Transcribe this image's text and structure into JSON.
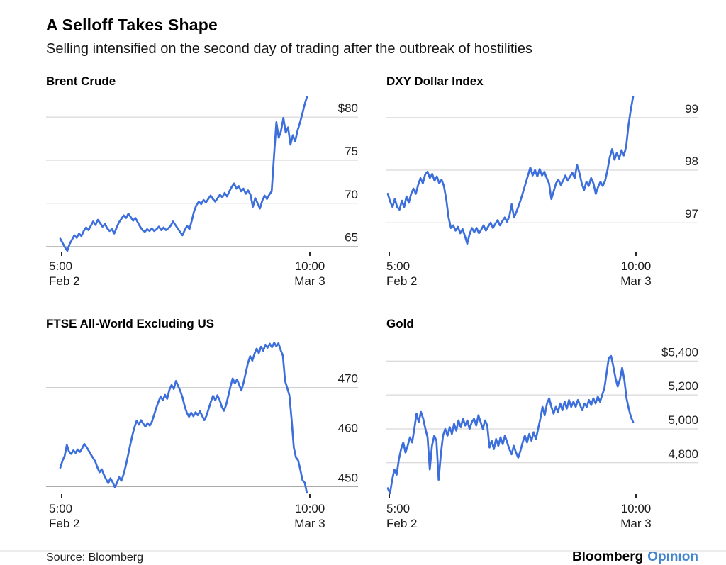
{
  "header": {
    "title": "A Selloff Takes Shape",
    "subtitle": "Selling intensified on the second day of trading after the outbreak of hostilities"
  },
  "footer": {
    "source": "Source: Bloomberg",
    "brand": "Bloomberg",
    "brand_suffix": "Opinion"
  },
  "colors": {
    "line": "#3C6EDC",
    "grid": "#cfcfcf",
    "grid_dark": "#a9a9a9",
    "opinion_blue": "#4285CE"
  },
  "chart_data": [
    {
      "id": "brent",
      "type": "line",
      "title": "Brent Crude",
      "ylim": [
        64.4,
        82.8
      ],
      "grid": true,
      "legend": "none",
      "line_span": [
        0.0455,
        0.836
      ],
      "gridlines": [
        {
          "value": 80,
          "label": "$80"
        },
        {
          "value": 75,
          "label": "75"
        },
        {
          "value": 70,
          "label": "70"
        },
        {
          "value": 65,
          "label": "65",
          "baseline": true
        }
      ],
      "x_start_time": "5:00",
      "x_start_date": "Feb 2",
      "x_end_time": "10:00",
      "x_end_date": "Mar 3",
      "values": [
        65.9,
        65.4,
        64.9,
        64.5,
        65.3,
        65.8,
        66.3,
        66.0,
        66.5,
        66.2,
        66.8,
        67.2,
        66.9,
        67.4,
        67.9,
        67.5,
        68.1,
        67.7,
        67.3,
        67.6,
        67.1,
        66.8,
        67.0,
        66.5,
        67.2,
        67.8,
        68.2,
        68.6,
        68.3,
        68.8,
        68.4,
        68.0,
        68.3,
        67.8,
        67.3,
        66.9,
        66.7,
        67.0,
        66.8,
        67.1,
        66.8,
        67.0,
        67.3,
        66.9,
        67.2,
        66.9,
        67.1,
        67.4,
        67.9,
        67.5,
        67.1,
        66.7,
        66.3,
        66.9,
        67.4,
        67.0,
        68.0,
        69.1,
        69.8,
        70.2,
        69.9,
        70.4,
        70.1,
        70.5,
        70.9,
        70.5,
        70.2,
        70.6,
        71.0,
        70.7,
        71.2,
        70.8,
        71.4,
        71.9,
        72.3,
        71.7,
        72.0,
        71.4,
        71.7,
        71.1,
        71.5,
        71.0,
        69.6,
        70.6,
        70.0,
        69.4,
        70.3,
        70.9,
        70.5,
        71.0,
        71.4,
        75.5,
        79.4,
        77.6,
        78.4,
        79.9,
        78.2,
        78.8,
        76.8,
        77.9,
        77.2,
        78.4,
        79.3,
        80.3,
        81.4,
        82.3
      ]
    },
    {
      "id": "dxy",
      "type": "line",
      "title": "DXY Dollar Index",
      "ylim": [
        96.45,
        99.47
      ],
      "grid": true,
      "legend": "none",
      "line_span": [
        0.0045,
        0.791
      ],
      "gridlines": [
        {
          "value": 99,
          "label": "99"
        },
        {
          "value": 98,
          "label": "98"
        },
        {
          "value": 97,
          "label": "97"
        }
      ],
      "x_start_time": "5:00",
      "x_start_date": "Feb 2",
      "x_end_time": "10:00",
      "x_end_date": "Mar 3",
      "values": [
        97.55,
        97.4,
        97.3,
        97.45,
        97.3,
        97.25,
        97.42,
        97.3,
        97.5,
        97.38,
        97.55,
        97.65,
        97.55,
        97.72,
        97.85,
        97.75,
        97.92,
        97.97,
        97.85,
        97.93,
        97.8,
        97.88,
        97.75,
        97.82,
        97.7,
        97.45,
        97.1,
        96.9,
        96.95,
        96.85,
        96.92,
        96.8,
        96.88,
        96.75,
        96.6,
        96.78,
        96.9,
        96.82,
        96.9,
        96.8,
        96.87,
        96.95,
        96.85,
        96.93,
        97.0,
        96.9,
        96.98,
        97.05,
        96.95,
        97.03,
        97.1,
        97.02,
        97.12,
        97.35,
        97.1,
        97.2,
        97.32,
        97.45,
        97.6,
        97.75,
        97.9,
        98.05,
        97.9,
        98.0,
        97.88,
        98.02,
        97.9,
        97.97,
        97.85,
        97.75,
        97.45,
        97.6,
        97.75,
        97.82,
        97.72,
        97.8,
        97.9,
        97.8,
        97.88,
        97.95,
        97.85,
        98.1,
        97.95,
        97.75,
        97.62,
        97.78,
        97.7,
        97.85,
        97.75,
        97.55,
        97.68,
        97.78,
        97.7,
        97.8,
        98.0,
        98.25,
        98.4,
        98.2,
        98.33,
        98.22,
        98.38,
        98.28,
        98.45,
        98.85,
        99.15,
        99.4
      ]
    },
    {
      "id": "ftse",
      "type": "line",
      "title": "FTSE All-World Excluding US",
      "ylim": [
        448.5,
        480.5
      ],
      "grid": true,
      "legend": "none",
      "line_span": [
        0.0455,
        0.836
      ],
      "gridlines": [
        {
          "value": 470,
          "label": "470"
        },
        {
          "value": 460,
          "label": "460"
        },
        {
          "value": 450,
          "label": "450",
          "baseline": true
        }
      ],
      "x_start_time": "5:00",
      "x_start_date": "Feb 2",
      "x_end_time": "10:00",
      "x_end_date": "Mar 3",
      "values": [
        453.8,
        455.2,
        456.2,
        458.4,
        457.1,
        456.6,
        457.3,
        456.8,
        457.5,
        457.0,
        457.7,
        458.6,
        458.0,
        457.3,
        456.5,
        455.8,
        455.1,
        453.9,
        452.9,
        453.5,
        452.4,
        451.5,
        450.7,
        451.7,
        450.9,
        449.9,
        450.8,
        451.9,
        451.2,
        452.5,
        454.2,
        456.2,
        458.3,
        460.3,
        462.0,
        463.3,
        462.5,
        463.4,
        462.7,
        462.1,
        462.8,
        462.3,
        463.1,
        464.5,
        465.9,
        467.1,
        468.2,
        467.4,
        468.5,
        467.7,
        469.5,
        470.5,
        469.7,
        471.3,
        470.3,
        469.3,
        468.0,
        466.2,
        464.9,
        464.1,
        464.9,
        464.2,
        465.0,
        464.4,
        465.2,
        464.3,
        463.4,
        464.3,
        465.7,
        467.1,
        468.3,
        467.4,
        468.4,
        467.5,
        466.1,
        465.3,
        466.5,
        468.3,
        470.2,
        471.8,
        470.8,
        471.6,
        470.5,
        469.4,
        471.0,
        473.0,
        474.9,
        476.3,
        475.4,
        476.8,
        477.8,
        476.9,
        478.2,
        477.4,
        478.6,
        478.0,
        478.8,
        478.1,
        479.0,
        478.3,
        478.9,
        477.5,
        476.4,
        471.3,
        469.9,
        468.4,
        463.5,
        457.9,
        455.9,
        455.3,
        453.4,
        451.3,
        450.8,
        448.8
      ]
    },
    {
      "id": "gold",
      "type": "line",
      "title": "Gold",
      "ylim": [
        4615,
        5552
      ],
      "grid": true,
      "legend": "none",
      "line_span": [
        0.0045,
        0.791
      ],
      "gridlines": [
        {
          "value": 5400,
          "label": "$5,400"
        },
        {
          "value": 5200,
          "label": "5,200"
        },
        {
          "value": 5000,
          "label": "5,000"
        },
        {
          "value": 4800,
          "label": "4,800"
        }
      ],
      "x_start_time": "5:00",
      "x_start_date": "Feb 2",
      "x_end_time": "10:00",
      "x_end_date": "Mar 3",
      "values": [
        4650,
        4620,
        4700,
        4760,
        4730,
        4820,
        4880,
        4920,
        4860,
        4900,
        4950,
        4920,
        5000,
        5090,
        5040,
        5100,
        5060,
        5000,
        4950,
        4760,
        4900,
        4960,
        4930,
        4700,
        4850,
        4960,
        5000,
        4960,
        5010,
        4970,
        5030,
        4990,
        5050,
        5010,
        5060,
        5020,
        5050,
        5000,
        5040,
        5060,
        5020,
        5080,
        5040,
        5000,
        5050,
        5020,
        4890,
        4930,
        4880,
        4940,
        4900,
        4950,
        4910,
        4960,
        4920,
        4880,
        4850,
        4900,
        4860,
        4830,
        4870,
        4920,
        4960,
        4920,
        4970,
        4930,
        4980,
        4940,
        5000,
        5060,
        5130,
        5080,
        5150,
        5180,
        5130,
        5090,
        5130,
        5100,
        5150,
        5110,
        5160,
        5120,
        5170,
        5130,
        5160,
        5130,
        5170,
        5140,
        5110,
        5150,
        5130,
        5170,
        5140,
        5180,
        5150,
        5190,
        5160,
        5200,
        5240,
        5330,
        5420,
        5430,
        5370,
        5300,
        5250,
        5290,
        5360,
        5290,
        5180,
        5120,
        5070,
        5040
      ]
    }
  ]
}
